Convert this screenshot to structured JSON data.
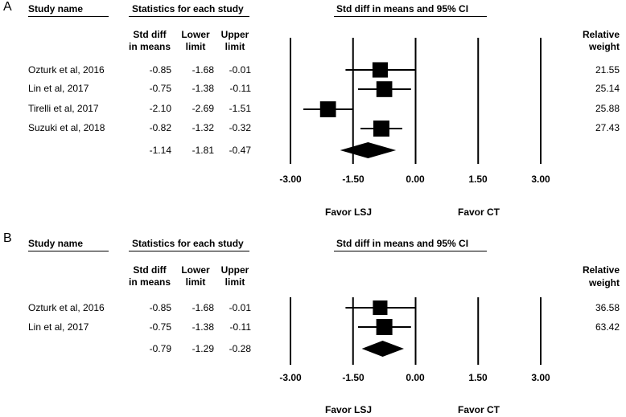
{
  "headers": {
    "study_name": "Study name",
    "statistics": "Statistics for each study",
    "std_diff_line1": "Std diff",
    "std_diff_line2": "in means",
    "lower_line1": "Lower",
    "lower_line2": "limit",
    "upper_line1": "Upper",
    "upper_line2": "limit",
    "ci": "Std diff in means and 95% CI",
    "weight_line1": "Relative",
    "weight_line2": "weight",
    "favor_left": "Favor LSJ",
    "favor_right": "Favor CT"
  },
  "chart_data": [
    {
      "type": "forest",
      "panel": "A",
      "x_ticks": [
        "-3.00",
        "-1.50",
        "0.00",
        "1.50",
        "3.00"
      ],
      "xlim": [
        -3,
        3
      ],
      "studies": [
        {
          "name": "Ozturk et al, 2016",
          "std_diff": "-0.85",
          "lower": "-1.68",
          "upper": "-0.01",
          "weight": "21.55"
        },
        {
          "name": "Lin et al, 2017",
          "std_diff": "-0.75",
          "lower": "-1.38",
          "upper": "-0.11",
          "weight": "25.14"
        },
        {
          "name": "Tirelli et al, 2017",
          "std_diff": "-2.10",
          "lower": "-2.69",
          "upper": "-1.51",
          "weight": "25.88"
        },
        {
          "name": "Suzuki et al, 2018",
          "std_diff": "-0.82",
          "lower": "-1.32",
          "upper": "-0.32",
          "weight": "27.43"
        }
      ],
      "summary": {
        "std_diff": "-1.14",
        "lower": "-1.81",
        "upper": "-0.47"
      }
    },
    {
      "type": "forest",
      "panel": "B",
      "x_ticks": [
        "-3.00",
        "-1.50",
        "0.00",
        "1.50",
        "3.00"
      ],
      "xlim": [
        -3,
        3
      ],
      "studies": [
        {
          "name": "Ozturk et al, 2016",
          "std_diff": "-0.85",
          "lower": "-1.68",
          "upper": "-0.01",
          "weight": "36.58"
        },
        {
          "name": "Lin et al, 2017",
          "std_diff": "-0.75",
          "lower": "-1.38",
          "upper": "-0.11",
          "weight": "63.42"
        }
      ],
      "summary": {
        "std_diff": "-0.79",
        "lower": "-1.29",
        "upper": "-0.28"
      }
    }
  ]
}
